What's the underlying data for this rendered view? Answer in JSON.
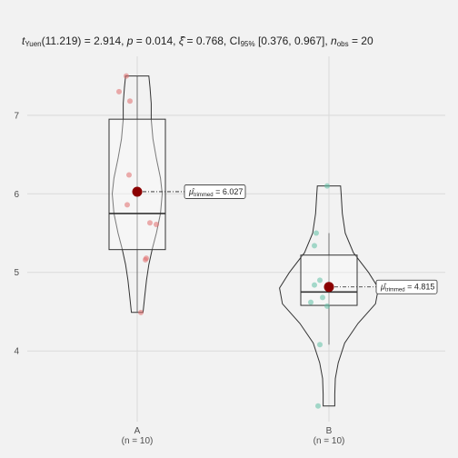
{
  "chart_data": {
    "type": "violin-box",
    "subtitle": {
      "t_label": "t",
      "t_sub": "Yuen",
      "df": "(11.219)",
      "stat": " = 2.914, ",
      "p_label": "p",
      "p_value": " = 0.014, ",
      "xi_label": "ξ̂",
      "xi_value": " = 0.768, CI",
      "ci_sub": "95%",
      "ci_value": " [0.376, 0.967], ",
      "n_label": "n",
      "n_sub": "obs",
      "n_value": " = 20"
    },
    "ylim": [
      3.1,
      7.75
    ],
    "yticks": [
      "4",
      "5",
      "6",
      "7"
    ],
    "grid": true,
    "groups": [
      {
        "name": "A",
        "n_label": "(n = 10)",
        "color": "#e06b6b",
        "points": [
          7.5,
          7.3,
          7.18,
          6.24,
          5.86,
          5.63,
          5.61,
          5.18,
          5.16,
          4.49
        ],
        "box": {
          "q1": 5.29,
          "median": 5.75,
          "q3": 6.95,
          "whisker_low": 4.49,
          "whisker_high": 7.5
        },
        "violin": {
          "min": 4.49,
          "max": 7.5,
          "widths": [
            [
              4.49,
              0.1
            ],
            [
              4.7,
              0.13
            ],
            [
              4.9,
              0.16
            ],
            [
              5.1,
              0.2
            ],
            [
              5.3,
              0.26
            ],
            [
              5.5,
              0.33
            ],
            [
              5.75,
              0.4
            ],
            [
              6.0,
              0.43
            ],
            [
              6.2,
              0.4
            ],
            [
              6.45,
              0.33
            ],
            [
              6.7,
              0.27
            ],
            [
              6.95,
              0.24
            ],
            [
              7.15,
              0.24
            ],
            [
              7.35,
              0.22
            ],
            [
              7.5,
              0.2
            ]
          ]
        },
        "mean": 6.027,
        "mean_label": "μ̂",
        "mean_sub": "trimmed",
        "mean_value": " = 6.027"
      },
      {
        "name": "B",
        "n_label": "(n = 10)",
        "color": "#5fbfa4",
        "points": [
          6.1,
          5.5,
          5.34,
          4.9,
          4.84,
          4.68,
          4.62,
          4.57,
          4.08,
          3.3
        ],
        "box": {
          "q1": 4.58,
          "median": 4.75,
          "q3": 5.22,
          "whisker_low": 4.08,
          "whisker_high": 5.5
        },
        "violin": {
          "min": 3.3,
          "max": 6.1,
          "widths": [
            [
              3.3,
              0.1
            ],
            [
              3.45,
              0.1
            ],
            [
              3.65,
              0.11
            ],
            [
              3.85,
              0.16
            ],
            [
              4.1,
              0.27
            ],
            [
              4.35,
              0.5
            ],
            [
              4.6,
              0.8
            ],
            [
              4.8,
              0.85
            ],
            [
              5.0,
              0.68
            ],
            [
              5.25,
              0.42
            ],
            [
              5.5,
              0.28
            ],
            [
              5.75,
              0.23
            ],
            [
              6.0,
              0.21
            ],
            [
              6.1,
              0.2
            ]
          ]
        },
        "mean": 4.815,
        "mean_label": "μ̂",
        "mean_sub": "trimmed",
        "mean_value": " = 4.815"
      }
    ]
  }
}
